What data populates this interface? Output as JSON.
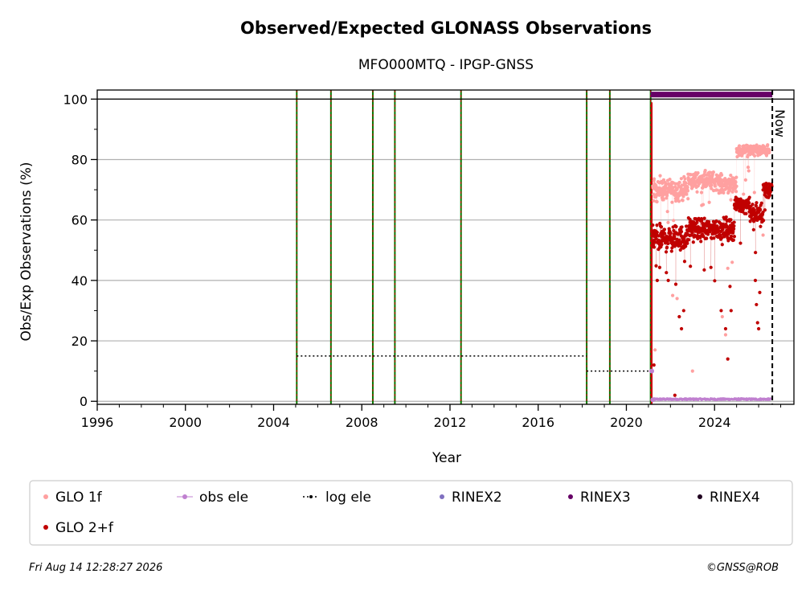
{
  "chart_data": {
    "type": "scatter",
    "title": "Observed/Expected GLONASS Observations",
    "subtitle": "MFO000MTQ - IPGP-GNSS",
    "xlabel": "Year",
    "ylabel": "Obs/Exp Observations (%)",
    "xlim": [
      1996,
      2027.6
    ],
    "ylim": [
      -1,
      103
    ],
    "xticks": [
      1996,
      2000,
      2004,
      2008,
      2012,
      2016,
      2020,
      2024
    ],
    "yticks": [
      0,
      20,
      40,
      60,
      80,
      100
    ],
    "grid": "horizontal",
    "legend_position": "bottom",
    "reference_line": 100,
    "now_year": 2026.62,
    "now_label": "Now",
    "event_lines": [
      2005.05,
      2006.6,
      2008.5,
      2009.5,
      2012.5,
      2018.2,
      2019.25,
      2021.1
    ],
    "red_line": 2021.15,
    "log_ele": [
      {
        "x": [
          2005.05,
          2018.2
        ],
        "y": [
          15,
          15
        ]
      },
      {
        "x": [
          2018.2,
          2021.1
        ],
        "y": [
          10,
          10
        ]
      }
    ],
    "obs_ele_points": {
      "x": [
        2021.15,
        2021.2
      ],
      "y": [
        10,
        0.5
      ]
    },
    "rinex3_bar": {
      "x": [
        2021.1,
        2026.62
      ],
      "y": 101.5
    },
    "series": [
      {
        "name": "GLO 1f",
        "color": "#ffa0a0",
        "segments": [
          {
            "x0": 2021.2,
            "x1": 2022.8,
            "mean": 70,
            "spread": 3
          },
          {
            "x0": 2022.8,
            "x1": 2024.2,
            "mean": 73,
            "spread": 2.5
          },
          {
            "x0": 2024.2,
            "x1": 2025.0,
            "mean": 72,
            "spread": 2.5
          },
          {
            "x0": 2025.0,
            "x1": 2026.5,
            "mean": 83,
            "spread": 1.5
          }
        ],
        "outliers": {
          "x": [
            2021.3,
            2021.5,
            2022.1,
            2022.3,
            2023.0,
            2024.35,
            2024.5,
            2024.6,
            2024.8,
            2025.6,
            2026.2
          ],
          "y": [
            17,
            52,
            35,
            34,
            10,
            28,
            22,
            44,
            46,
            62,
            55
          ]
        }
      },
      {
        "name": "obs ele",
        "color": "#c080d0"
      },
      {
        "name": "log ele",
        "color": "#000000"
      },
      {
        "name": "RINEX2",
        "color": "#8070c0"
      },
      {
        "name": "RINEX3",
        "color": "#660066"
      },
      {
        "name": "RINEX4",
        "color": "#200020"
      },
      {
        "name": "GLO 2+f",
        "color": "#c00000",
        "segments": [
          {
            "x0": 2021.15,
            "x1": 2022.8,
            "mean": 54,
            "spread": 3.5
          },
          {
            "x0": 2022.8,
            "x1": 2024.9,
            "mean": 57,
            "spread": 3
          },
          {
            "x0": 2024.9,
            "x1": 2025.6,
            "mean": 65,
            "spread": 2
          },
          {
            "x0": 2025.6,
            "x1": 2026.2,
            "mean": 62,
            "spread": 3
          },
          {
            "x0": 2026.2,
            "x1": 2026.6,
            "mean": 70,
            "spread": 2.5
          }
        ],
        "outliers": {
          "x": [
            2021.25,
            2021.4,
            2021.9,
            2022.2,
            2022.4,
            2022.5,
            2022.6,
            2024.3,
            2024.5,
            2024.6,
            2024.7,
            2024.75,
            2025.85,
            2025.9,
            2025.95,
            2026.0,
            2026.05
          ],
          "y": [
            12,
            40,
            40,
            2,
            28,
            24,
            30,
            30,
            24,
            14,
            38,
            30,
            40,
            32,
            26,
            24,
            36
          ]
        }
      }
    ]
  },
  "footer": {
    "timestamp": "Fri Aug 14 12:28:27 2026",
    "credit": "©GNSS@ROB"
  }
}
